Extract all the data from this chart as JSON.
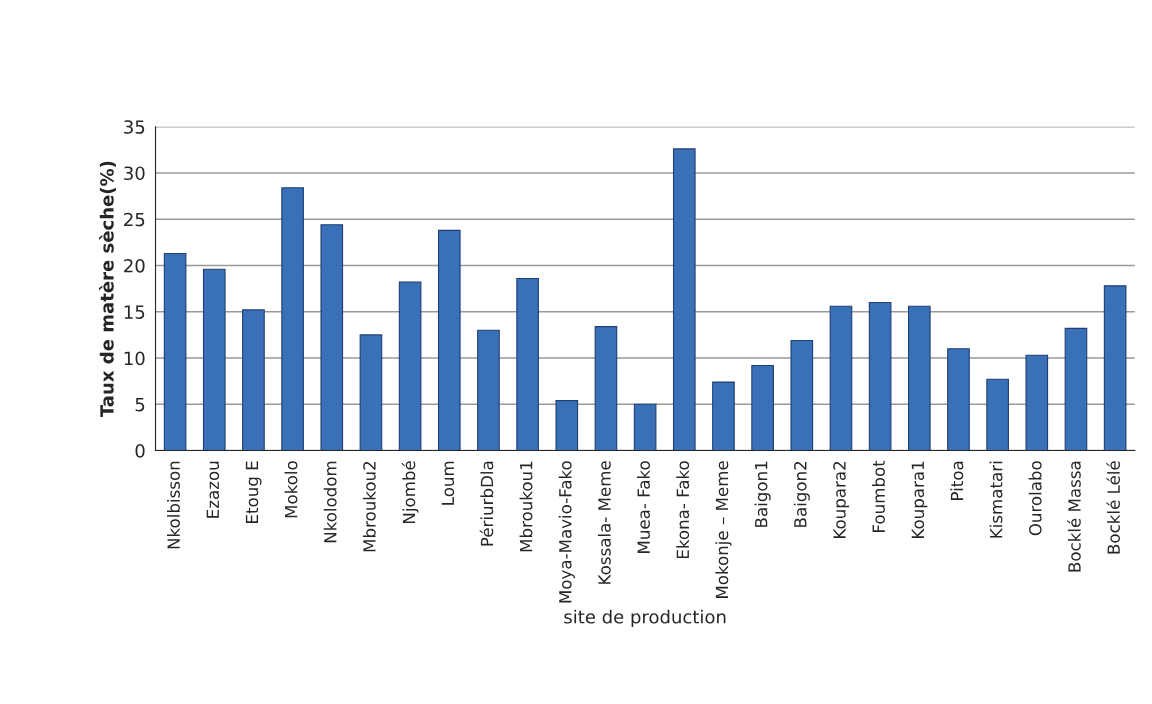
{
  "chart_data": {
    "type": "bar",
    "xlabel": "site de production",
    "ylabel": "Taux de matère sèche(%)",
    "categories": [
      "Nkolbisson",
      "Ezazou",
      "Etoug E",
      "Mokolo",
      "Nkolodom",
      "Mbroukou2",
      "Njombé",
      "Loum",
      "PériurbDla",
      "Mbroukou1",
      "Moya-Mavio-Fako",
      "Kossala- Meme",
      "Muea- Fako",
      "Ekona- Fako",
      "Mokonje – Meme",
      "Baigon1",
      "Baigon2",
      "Koupara2",
      "Foumbot",
      "Koupara1",
      "Pitoa",
      "Kismatari",
      "Ourolabo",
      "Bocklé Massa",
      "Bocklé Lélé"
    ],
    "values": [
      21.3,
      19.6,
      15.2,
      28.4,
      24.4,
      12.5,
      18.2,
      23.8,
      13.0,
      18.6,
      5.4,
      13.4,
      5.0,
      32.6,
      7.4,
      9.2,
      11.9,
      15.6,
      16.0,
      15.6,
      11.0,
      7.7,
      10.3,
      13.2,
      17.8
    ],
    "color": "#3a70b8",
    "ylim": [
      0,
      35
    ],
    "yticks": [
      0,
      5,
      10,
      15,
      20,
      25,
      30,
      35
    ],
    "grid": "y",
    "legend": false
  }
}
